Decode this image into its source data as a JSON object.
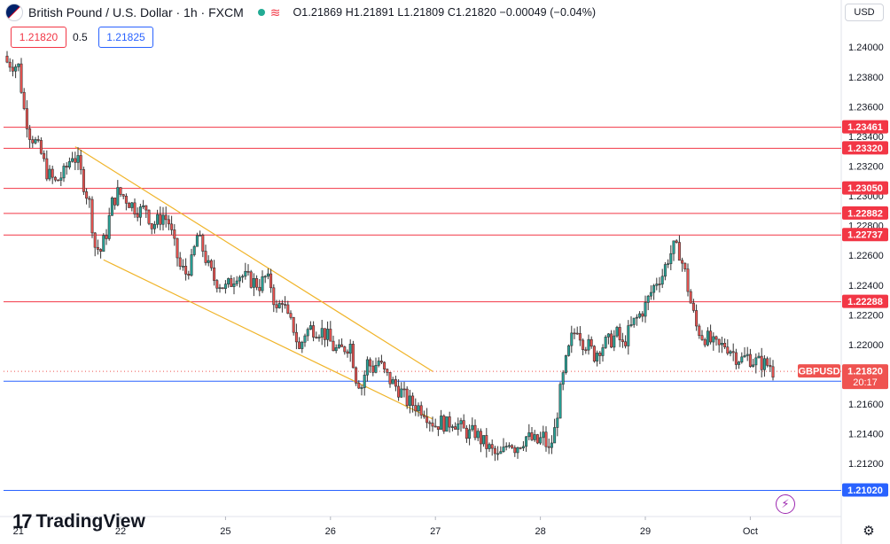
{
  "header": {
    "title": "British Pound / U.S. Dollar · 1h · FXCM",
    "ohlc": "O1.21869  H1.21891  L1.21809  C1.21820  −0.00049 (−0.04%)"
  },
  "currency": "USD",
  "trade": {
    "sell": "1.21820",
    "spread": "0.5",
    "buy": "1.21825"
  },
  "logo": {
    "text": "TradingView"
  },
  "icons": {
    "flash": "flash-icon",
    "settings": "settings-icon",
    "wave": "wave-icon"
  },
  "chart_data": {
    "type": "candlestick",
    "symbol": "GBPUSD",
    "current_price": "1.21820",
    "countdown": "20:17",
    "ylim": [
      1.2085,
      1.2415
    ],
    "y_ticks": [
      "1.24000",
      "1.23800",
      "1.23600",
      "1.23400",
      "1.23200",
      "1.23000",
      "1.22800",
      "1.22600",
      "1.22400",
      "1.22200",
      "1.22000",
      "1.21800",
      "1.21600",
      "1.21400",
      "1.21200"
    ],
    "x_ticks": [
      {
        "label": "21",
        "i": 4
      },
      {
        "label": "22",
        "i": 40
      },
      {
        "label": "25",
        "i": 77
      },
      {
        "label": "26",
        "i": 114
      },
      {
        "label": "27",
        "i": 151
      },
      {
        "label": "28",
        "i": 188
      },
      {
        "label": "29",
        "i": 225
      },
      {
        "label": "Oct",
        "i": 262
      }
    ],
    "horizontal_levels": [
      {
        "label": "1.23461",
        "value": 1.23461,
        "color": "#f23645"
      },
      {
        "label": "1.23320",
        "value": 1.2332,
        "color": "#f23645"
      },
      {
        "label": "1.23050",
        "value": 1.2305,
        "color": "#f23645"
      },
      {
        "label": "1.22882",
        "value": 1.22882,
        "color": "#f23645"
      },
      {
        "label": "1.22737",
        "value": 1.22737,
        "color": "#f23645"
      },
      {
        "label": "1.22288",
        "value": 1.22288,
        "color": "#f23645"
      },
      {
        "label": "1.21754",
        "value": 1.21754,
        "color": "#2962ff"
      },
      {
        "label": "1.21020",
        "value": 1.2102,
        "color": "#2962ff"
      }
    ],
    "channel": {
      "upper": [
        [
          24,
          1.2333
        ],
        [
          150,
          1.2182
        ]
      ],
      "lower": [
        [
          34,
          1.2257
        ],
        [
          150,
          1.215
        ]
      ]
    },
    "close_path": [
      [
        0,
        1.239
      ],
      [
        4,
        1.2387
      ],
      [
        6,
        1.2358
      ],
      [
        8,
        1.2342
      ],
      [
        10,
        1.2336
      ],
      [
        12,
        1.2328
      ],
      [
        14,
        1.2316
      ],
      [
        17,
        1.2309
      ],
      [
        20,
        1.2315
      ],
      [
        23,
        1.2328
      ],
      [
        25,
        1.2322
      ],
      [
        27,
        1.2308
      ],
      [
        29,
        1.2295
      ],
      [
        31,
        1.2266
      ],
      [
        33,
        1.2263
      ],
      [
        35,
        1.2275
      ],
      [
        37,
        1.2295
      ],
      [
        39,
        1.2302
      ],
      [
        41,
        1.23
      ],
      [
        43,
        1.2296
      ],
      [
        45,
        1.2292
      ],
      [
        47,
        1.229
      ],
      [
        49,
        1.2292
      ],
      [
        51,
        1.228
      ],
      [
        53,
        1.2283
      ],
      [
        55,
        1.2287
      ],
      [
        57,
        1.2282
      ],
      [
        59,
        1.2266
      ],
      [
        61,
        1.2252
      ],
      [
        63,
        1.2248
      ],
      [
        65,
        1.2255
      ],
      [
        67,
        1.2273
      ],
      [
        69,
        1.2264
      ],
      [
        71,
        1.2252
      ],
      [
        73,
        1.2244
      ],
      [
        75,
        1.2241
      ],
      [
        77,
        1.2238
      ],
      [
        79,
        1.2242
      ],
      [
        81,
        1.2248
      ],
      [
        83,
        1.2246
      ],
      [
        85,
        1.2244
      ],
      [
        87,
        1.2242
      ],
      [
        89,
        1.224
      ],
      [
        91,
        1.2245
      ],
      [
        93,
        1.224
      ],
      [
        95,
        1.2222
      ],
      [
        97,
        1.2231
      ],
      [
        99,
        1.2217
      ],
      [
        101,
        1.2211
      ],
      [
        103,
        1.2196
      ],
      [
        105,
        1.2208
      ],
      [
        107,
        1.2211
      ],
      [
        109,
        1.221
      ],
      [
        111,
        1.2209
      ],
      [
        113,
        1.2205
      ],
      [
        115,
        1.2198
      ],
      [
        117,
        1.2195
      ],
      [
        119,
        1.2198
      ],
      [
        121,
        1.22
      ],
      [
        123,
        1.2178
      ],
      [
        125,
        1.2172
      ],
      [
        127,
        1.2188
      ],
      [
        129,
        1.2184
      ],
      [
        131,
        1.2189
      ],
      [
        133,
        1.2181
      ],
      [
        135,
        1.2176
      ],
      [
        137,
        1.2172
      ],
      [
        139,
        1.2168
      ],
      [
        141,
        1.2162
      ],
      [
        143,
        1.216
      ],
      [
        145,
        1.2158
      ],
      [
        147,
        1.2156
      ],
      [
        149,
        1.215
      ],
      [
        151,
        1.2146
      ],
      [
        153,
        1.2148
      ],
      [
        155,
        1.2146
      ],
      [
        157,
        1.2149
      ],
      [
        159,
        1.2146
      ],
      [
        161,
        1.2142
      ],
      [
        163,
        1.214
      ],
      [
        165,
        1.2141
      ],
      [
        167,
        1.2136
      ],
      [
        169,
        1.2132
      ],
      [
        171,
        1.2128
      ],
      [
        173,
        1.2124
      ],
      [
        175,
        1.2128
      ],
      [
        177,
        1.2136
      ],
      [
        179,
        1.2131
      ],
      [
        181,
        1.2134
      ],
      [
        183,
        1.2138
      ],
      [
        185,
        1.2136
      ],
      [
        187,
        1.2134
      ],
      [
        189,
        1.2138
      ],
      [
        191,
        1.2128
      ],
      [
        193,
        1.2142
      ],
      [
        195,
        1.2168
      ],
      [
        197,
        1.2188
      ],
      [
        199,
        1.2204
      ],
      [
        201,
        1.2212
      ],
      [
        203,
        1.2202
      ],
      [
        205,
        1.2199
      ],
      [
        207,
        1.2193
      ],
      [
        209,
        1.2198
      ],
      [
        211,
        1.2201
      ],
      [
        213,
        1.2203
      ],
      [
        215,
        1.2207
      ],
      [
        217,
        1.2199
      ],
      [
        219,
        1.2208
      ],
      [
        221,
        1.2215
      ],
      [
        223,
        1.222
      ],
      [
        225,
        1.2226
      ],
      [
        227,
        1.2235
      ],
      [
        229,
        1.2243
      ],
      [
        231,
        1.2247
      ],
      [
        233,
        1.2258
      ],
      [
        235,
        1.2265
      ],
      [
        237,
        1.2262
      ],
      [
        239,
        1.2248
      ],
      [
        241,
        1.2228
      ],
      [
        243,
        1.2212
      ],
      [
        245,
        1.2206
      ],
      [
        247,
        1.2204
      ],
      [
        249,
        1.22
      ],
      [
        251,
        1.2198
      ],
      [
        253,
        1.22
      ],
      [
        255,
        1.2197
      ],
      [
        257,
        1.2192
      ],
      [
        259,
        1.219
      ],
      [
        261,
        1.2192
      ],
      [
        263,
        1.2189
      ],
      [
        265,
        1.2188
      ],
      [
        267,
        1.2187
      ],
      [
        269,
        1.2186
      ],
      [
        270,
        1.2182
      ]
    ]
  }
}
